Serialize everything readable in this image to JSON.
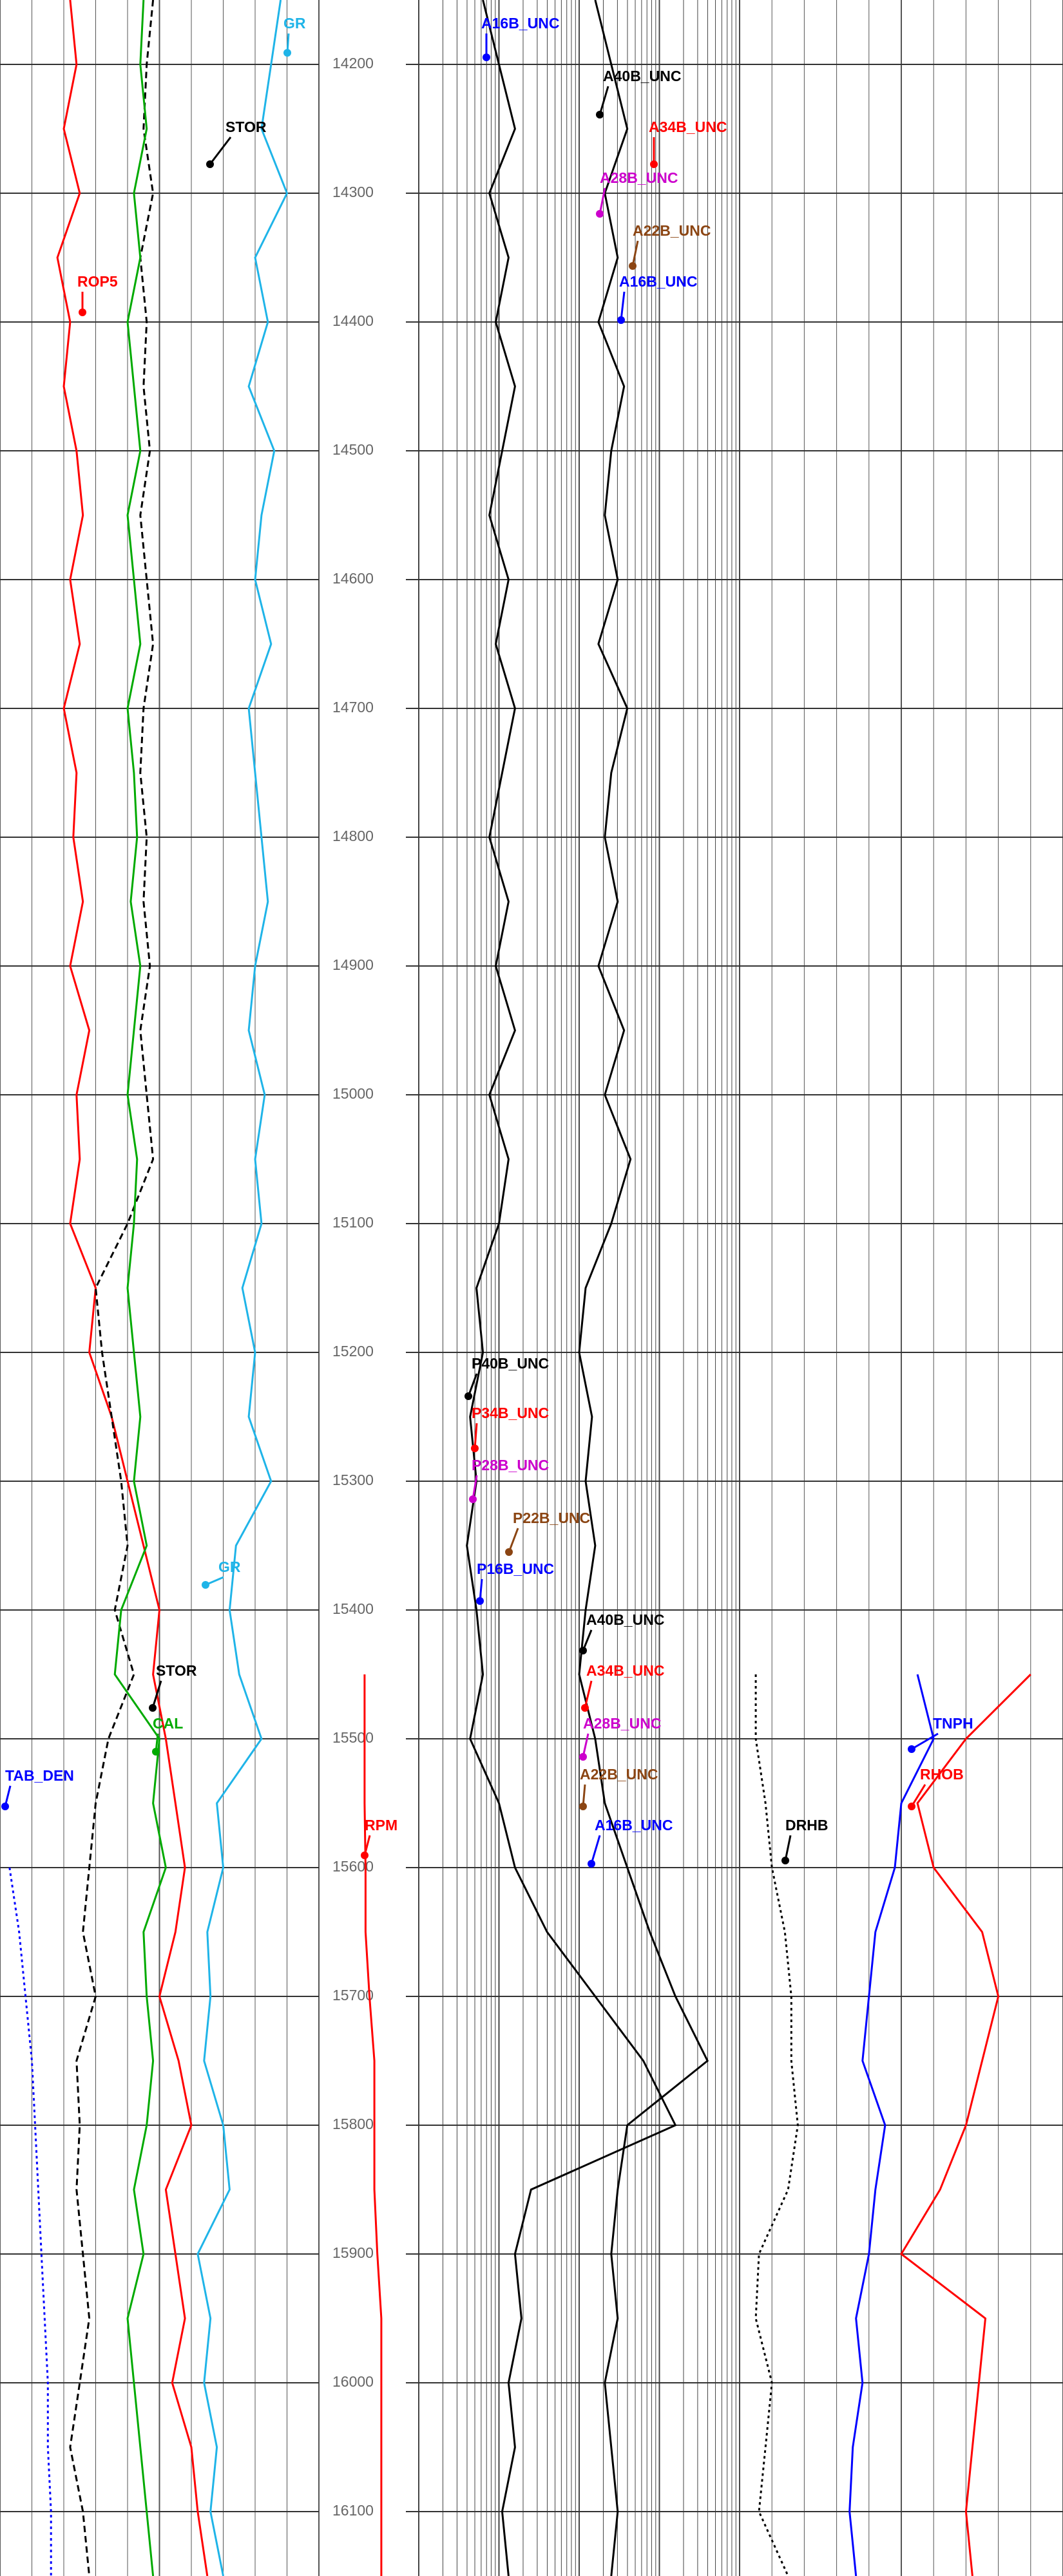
{
  "chart_data": {
    "type": "well-log",
    "x": [
      14150,
      14200,
      14250,
      14300,
      14350,
      14400,
      14450,
      14500,
      14550,
      14600,
      14650,
      14700,
      14750,
      14800,
      14850,
      14900,
      14950,
      15000,
      15050,
      15100,
      15150,
      15200,
      15250,
      15300,
      15350,
      15400,
      15450,
      15500,
      15550,
      15600,
      15650,
      15700,
      15750,
      15800,
      15850,
      15900,
      15950,
      16000,
      16050,
      16100,
      16150
    ],
    "ylim": [
      14150,
      16150
    ],
    "yticks": [
      14200,
      14300,
      14400,
      14500,
      14600,
      14700,
      14800,
      14900,
      15000,
      15100,
      15200,
      15300,
      15400,
      15500,
      15600,
      15700,
      15800,
      15900,
      16000,
      16100
    ],
    "grid": true,
    "series": [
      {
        "track": 0,
        "color": "#ff0000",
        "style": "solid",
        "values": [
          22,
          24,
          20,
          25,
          18,
          22,
          20,
          24,
          26,
          22,
          25,
          20,
          24,
          23,
          26,
          22,
          28,
          24,
          25,
          22,
          30,
          28,
          35,
          40,
          45,
          50,
          48,
          52,
          55,
          58,
          55,
          50,
          56,
          60,
          52,
          55,
          58,
          54,
          60,
          62,
          65
        ]
      },
      {
        "track": 0,
        "color": "#1fb4e8",
        "style": "solid",
        "values": [
          88,
          85,
          82,
          90,
          80,
          84,
          78,
          86,
          82,
          80,
          85,
          78,
          80,
          82,
          84,
          80,
          78,
          83,
          80,
          82,
          76,
          80,
          78,
          85,
          74,
          72,
          75,
          82,
          68,
          70,
          65,
          66,
          64,
          70,
          72,
          62,
          66,
          64,
          68,
          66,
          70
        ]
      },
      {
        "track": 0,
        "color": "#000000",
        "style": "dashed",
        "values": [
          48,
          46,
          45,
          48,
          44,
          46,
          45,
          47,
          44,
          46,
          48,
          45,
          44,
          46,
          45,
          47,
          44,
          46,
          48,
          40,
          30,
          32,
          35,
          38,
          40,
          36,
          42,
          34,
          30,
          28,
          26,
          30,
          24,
          25,
          24,
          26,
          28,
          25,
          22,
          26,
          28
        ]
      },
      {
        "track": 0,
        "color": "#00aa00",
        "style": "solid",
        "values": [
          45,
          44,
          46,
          42,
          44,
          40,
          42,
          44,
          40,
          42,
          44,
          40,
          42,
          43,
          41,
          44,
          42,
          40,
          43,
          42,
          40,
          42,
          44,
          42,
          46,
          38,
          36,
          50,
          48,
          52,
          45,
          46,
          48,
          46,
          42,
          45,
          40,
          42,
          44,
          46,
          48
        ]
      },
      {
        "track": 0,
        "color": "#0000ff",
        "style": "dotted",
        "values": [
          null,
          null,
          null,
          null,
          null,
          null,
          null,
          null,
          null,
          null,
          null,
          null,
          null,
          null,
          null,
          null,
          null,
          null,
          null,
          null,
          null,
          null,
          null,
          null,
          null,
          null,
          null,
          null,
          null,
          3,
          6,
          8,
          10,
          11,
          12,
          13,
          14,
          15,
          15,
          16,
          16
        ]
      },
      {
        "track": 1,
        "color": "#ff0000",
        "style": "solid",
        "values": [
          null,
          null,
          null,
          null,
          null,
          null,
          null,
          null,
          null,
          null,
          null,
          null,
          null,
          null,
          null,
          null,
          null,
          null,
          null,
          null,
          null,
          null,
          null,
          null,
          null,
          null,
          45,
          45,
          45,
          46,
          46,
          50,
          55,
          55,
          55,
          58,
          62,
          62,
          62,
          62,
          62
        ]
      },
      {
        "track": 2,
        "color": "#000000",
        "style": "solid",
        "values": [
          20,
          25,
          30,
          22,
          28,
          24,
          30,
          26,
          22,
          28,
          24,
          30,
          26,
          22,
          28,
          24,
          30,
          22,
          28,
          25,
          18,
          20,
          16,
          18,
          15,
          18,
          20,
          16,
          25,
          30,
          40,
          55,
          70,
          80,
          35,
          30,
          32,
          28,
          30,
          26,
          28
        ]
      },
      {
        "track": 2,
        "color": "#000000",
        "style": "solid",
        "values": [
          55,
          60,
          65,
          58,
          62,
          56,
          64,
          60,
          58,
          62,
          56,
          65,
          60,
          58,
          62,
          56,
          64,
          58,
          66,
          60,
          52,
          50,
          54,
          52,
          55,
          52,
          50,
          55,
          58,
          65,
          72,
          80,
          90,
          65,
          62,
          60,
          62,
          58,
          60,
          62,
          60
        ]
      },
      {
        "track": 3,
        "color": "#000000",
        "style": "dotted",
        "values": [
          null,
          null,
          null,
          null,
          null,
          null,
          null,
          null,
          null,
          null,
          null,
          null,
          null,
          null,
          null,
          null,
          null,
          null,
          null,
          null,
          null,
          null,
          null,
          null,
          null,
          null,
          5,
          5,
          8,
          10,
          14,
          16,
          16,
          18,
          15,
          6,
          5,
          10,
          8,
          6,
          15
        ]
      },
      {
        "track": 3,
        "color": "#0000ff",
        "style": "solid",
        "values": [
          null,
          null,
          null,
          null,
          null,
          null,
          null,
          null,
          null,
          null,
          null,
          null,
          null,
          null,
          null,
          null,
          null,
          null,
          null,
          null,
          null,
          null,
          null,
          null,
          null,
          null,
          55,
          60,
          50,
          48,
          42,
          40,
          38,
          45,
          42,
          40,
          36,
          38,
          35,
          34,
          36
        ]
      },
      {
        "track": 3,
        "color": "#ff0000",
        "style": "solid",
        "values": [
          null,
          null,
          null,
          null,
          null,
          null,
          null,
          null,
          null,
          null,
          null,
          null,
          null,
          null,
          null,
          null,
          null,
          null,
          null,
          null,
          null,
          null,
          null,
          null,
          null,
          null,
          90,
          70,
          55,
          60,
          75,
          80,
          75,
          70,
          62,
          50,
          76,
          74,
          72,
          70,
          72
        ]
      }
    ],
    "annotations": [
      {
        "text": "GR",
        "color": "#1fb4e8"
      },
      {
        "text": "STOR",
        "color": "#000000"
      },
      {
        "text": "ROP5",
        "color": "#ff0000"
      },
      {
        "text": "STOR",
        "color": "#000000"
      },
      {
        "text": "CAL",
        "color": "#00aa00"
      },
      {
        "text": "GR",
        "color": "#1fb4e8"
      },
      {
        "text": "TAB_DEN",
        "color": "#0000ff"
      },
      {
        "text": "RPM",
        "color": "#ff0000"
      },
      {
        "text": "A16B_UNC",
        "color": "#0000ff"
      },
      {
        "text": "A40B_UNC",
        "color": "#000000"
      },
      {
        "text": "A34B_UNC",
        "color": "#ff0000"
      },
      {
        "text": "A28B_UNC",
        "color": "#cc00cc"
      },
      {
        "text": "A22B_UNC",
        "color": "#8b4513"
      },
      {
        "text": "A16B_UNC",
        "color": "#0000ff"
      },
      {
        "text": "P40B_UNC",
        "color": "#000000"
      },
      {
        "text": "P34B_UNC",
        "color": "#ff0000"
      },
      {
        "text": "P28B_UNC",
        "color": "#cc00cc"
      },
      {
        "text": "P22B_UNC",
        "color": "#8b4513"
      },
      {
        "text": "P16B_UNC",
        "color": "#0000ff"
      },
      {
        "text": "A40B_UNC",
        "color": "#000000"
      },
      {
        "text": "A34B_UNC",
        "color": "#ff0000"
      },
      {
        "text": "A28B_UNC",
        "color": "#cc00cc"
      },
      {
        "text": "A22B_UNC",
        "color": "#8b4513"
      },
      {
        "text": "A16B_UNC",
        "color": "#0000ff"
      },
      {
        "text": "TNPH",
        "color": "#0000ff"
      },
      {
        "text": "RHOB",
        "color": "#ff0000"
      },
      {
        "text": "DRHB",
        "color": "#000000"
      }
    ]
  }
}
